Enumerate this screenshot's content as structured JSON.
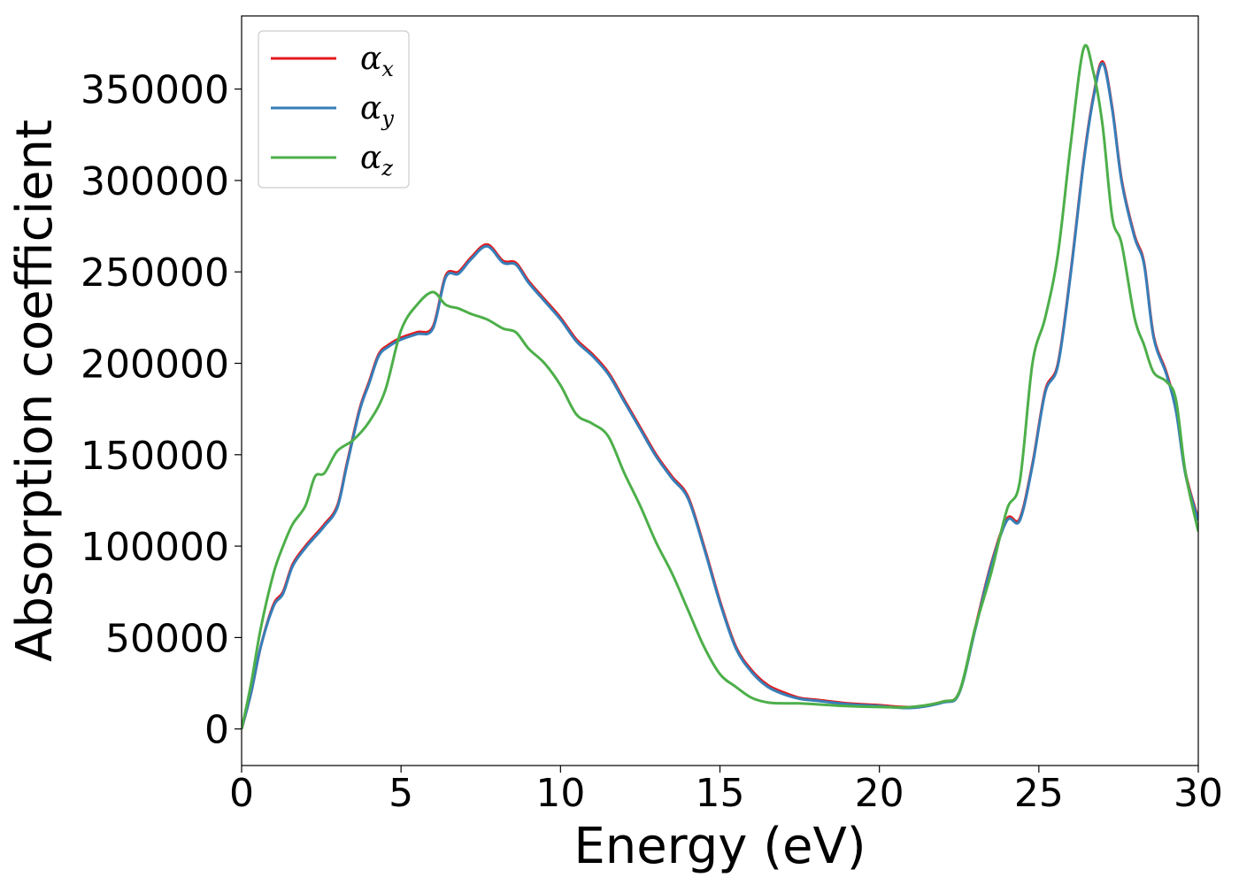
{
  "chart_data": {
    "type": "line",
    "xlabel": "Energy (eV)",
    "ylabel": "Absorption coefficient",
    "xlim": [
      0,
      30
    ],
    "ylim": [
      -20000,
      390000
    ],
    "xticks": [
      0,
      5,
      10,
      15,
      20,
      25,
      30
    ],
    "xtick_labels": [
      "0",
      "5",
      "10",
      "15",
      "20",
      "25",
      "30"
    ],
    "yticks": [
      0,
      50000,
      100000,
      150000,
      200000,
      250000,
      300000,
      350000
    ],
    "ytick_labels": [
      "0",
      "50000",
      "100000",
      "150000",
      "200000",
      "250000",
      "300000",
      "350000"
    ],
    "grid": false,
    "legend_position": "top-left",
    "series": [
      {
        "name": "α",
        "subscript": "x",
        "color": "#e41a1c",
        "x": [
          0,
          0.3,
          0.6,
          1.0,
          1.3,
          1.6,
          2.0,
          2.3,
          2.6,
          3.0,
          3.3,
          3.7,
          4.0,
          4.3,
          4.6,
          5.0,
          5.5,
          6.0,
          6.4,
          6.8,
          7.2,
          7.7,
          8.2,
          8.6,
          9.0,
          9.5,
          10.0,
          10.5,
          11.0,
          11.5,
          12.0,
          12.5,
          13.0,
          13.5,
          14.0,
          14.5,
          15.0,
          15.5,
          16.0,
          16.5,
          17.0,
          17.5,
          18.0,
          18.5,
          19.0,
          20.0,
          21.0,
          22.0,
          22.5,
          23.0,
          23.5,
          24.0,
          24.4,
          24.8,
          25.2,
          25.6,
          26.0,
          26.4,
          26.7,
          27.0,
          27.3,
          27.6,
          28.0,
          28.3,
          28.6,
          29.0,
          29.3,
          29.6,
          30.0
        ],
        "y": [
          0,
          20000,
          45000,
          68000,
          75000,
          90000,
          100000,
          106000,
          112000,
          122000,
          145000,
          175000,
          190000,
          205000,
          210000,
          214000,
          217000,
          220000,
          248000,
          250000,
          258000,
          265000,
          256000,
          255000,
          245000,
          235000,
          225000,
          213000,
          205000,
          195000,
          180000,
          165000,
          150000,
          138000,
          127000,
          100000,
          70000,
          45000,
          32000,
          24000,
          20000,
          17000,
          16000,
          15000,
          14000,
          13000,
          12000,
          15000,
          20000,
          55000,
          90000,
          115000,
          115000,
          145000,
          185000,
          200000,
          250000,
          310000,
          345000,
          365000,
          340000,
          300000,
          270000,
          255000,
          215000,
          195000,
          175000,
          140000,
          115000
        ]
      },
      {
        "name": "α",
        "subscript": "y",
        "color": "#377eb8",
        "x": [
          0,
          0.3,
          0.6,
          1.0,
          1.3,
          1.6,
          2.0,
          2.3,
          2.6,
          3.0,
          3.3,
          3.7,
          4.0,
          4.3,
          4.6,
          5.0,
          5.5,
          6.0,
          6.4,
          6.8,
          7.2,
          7.7,
          8.2,
          8.6,
          9.0,
          9.5,
          10.0,
          10.5,
          11.0,
          11.5,
          12.0,
          12.5,
          13.0,
          13.5,
          14.0,
          14.5,
          15.0,
          15.5,
          16.0,
          16.5,
          17.0,
          17.5,
          18.0,
          18.5,
          19.0,
          20.0,
          21.0,
          22.0,
          22.5,
          23.0,
          23.5,
          24.0,
          24.4,
          24.8,
          25.2,
          25.6,
          26.0,
          26.4,
          26.7,
          27.0,
          27.3,
          27.6,
          28.0,
          28.3,
          28.6,
          29.0,
          29.3,
          29.6,
          30.0
        ],
        "y": [
          0,
          20000,
          45000,
          67000,
          74000,
          89000,
          99000,
          105000,
          111000,
          121000,
          144000,
          174000,
          189000,
          204000,
          209000,
          213000,
          216000,
          219000,
          247000,
          249000,
          257000,
          264000,
          255000,
          254000,
          244000,
          234000,
          224000,
          212000,
          204000,
          194000,
          179000,
          164000,
          149000,
          137000,
          126000,
          99000,
          69000,
          44000,
          31000,
          23000,
          19000,
          16500,
          15500,
          14500,
          13500,
          12500,
          11500,
          14500,
          19500,
          54000,
          89000,
          114000,
          114000,
          144000,
          184000,
          199000,
          249000,
          309000,
          344000,
          364000,
          339000,
          299000,
          269000,
          254000,
          214000,
          194000,
          174000,
          139000,
          114000
        ]
      },
      {
        "name": "α",
        "subscript": "z",
        "color": "#4daf4a",
        "x": [
          0,
          0.3,
          0.6,
          1.0,
          1.3,
          1.6,
          2.0,
          2.3,
          2.6,
          3.0,
          3.5,
          4.0,
          4.5,
          5.0,
          5.5,
          6.0,
          6.4,
          6.8,
          7.2,
          7.7,
          8.2,
          8.6,
          9.0,
          9.5,
          10.0,
          10.5,
          11.0,
          11.5,
          12.0,
          12.5,
          13.0,
          13.5,
          14.0,
          14.5,
          15.0,
          15.5,
          16.0,
          16.5,
          17.0,
          17.5,
          18.0,
          19.0,
          20.0,
          21.0,
          22.0,
          22.5,
          23.0,
          23.5,
          24.0,
          24.4,
          24.8,
          25.2,
          25.6,
          26.0,
          26.4,
          26.7,
          27.0,
          27.3,
          27.6,
          28.0,
          28.3,
          28.6,
          29.0,
          29.3,
          29.6,
          30.0
        ],
        "y": [
          0,
          25000,
          55000,
          85000,
          100000,
          112000,
          122000,
          138000,
          140000,
          152000,
          158000,
          168000,
          185000,
          218000,
          232000,
          239000,
          232000,
          230000,
          227000,
          224000,
          219000,
          217000,
          208000,
          200000,
          188000,
          172000,
          167000,
          160000,
          140000,
          122000,
          102000,
          85000,
          65000,
          45000,
          30000,
          23000,
          17000,
          14500,
          14000,
          14000,
          13500,
          12500,
          12000,
          12000,
          15000,
          20000,
          55000,
          85000,
          120000,
          135000,
          200000,
          225000,
          260000,
          320000,
          372000,
          360000,
          330000,
          280000,
          265000,
          225000,
          210000,
          195000,
          190000,
          180000,
          140000,
          108000
        ]
      }
    ]
  }
}
